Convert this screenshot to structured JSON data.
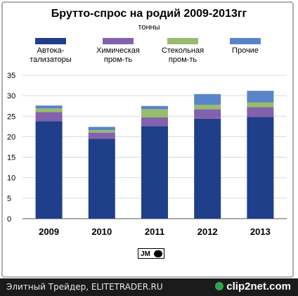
{
  "chart_data": {
    "type": "bar",
    "stacked": true,
    "title": "Брутто-спрос на родий 2009-2013гг",
    "subtitle": "тонны",
    "categories": [
      "2009",
      "2010",
      "2011",
      "2012",
      "2013"
    ],
    "series": [
      {
        "name": "Автока-\nтализаторы",
        "color": "#1f3f8a",
        "values": [
          23.8,
          19.5,
          22.6,
          24.4,
          24.8
        ]
      },
      {
        "name": "Химическая\nпром-ть",
        "color": "#8262ad",
        "values": [
          2.2,
          1.5,
          2.1,
          2.3,
          2.4
        ]
      },
      {
        "name": "Стекольная\nпром-ть",
        "color": "#99bb6e",
        "values": [
          0.9,
          0.6,
          2.0,
          1.1,
          1.2
        ]
      },
      {
        "name": "Прочие",
        "color": "#5a84c8",
        "values": [
          0.7,
          0.8,
          0.8,
          2.6,
          2.8
        ]
      }
    ],
    "ylim": [
      0,
      35
    ],
    "yticks": [
      0,
      5,
      10,
      15,
      20,
      25,
      30,
      35
    ],
    "grid": true,
    "legend": "top"
  },
  "logo": {
    "text": "JM"
  },
  "footer": {
    "text": "Элитный Трейдер, ELITETRADER.RU",
    "brand": "clip2net.com"
  }
}
